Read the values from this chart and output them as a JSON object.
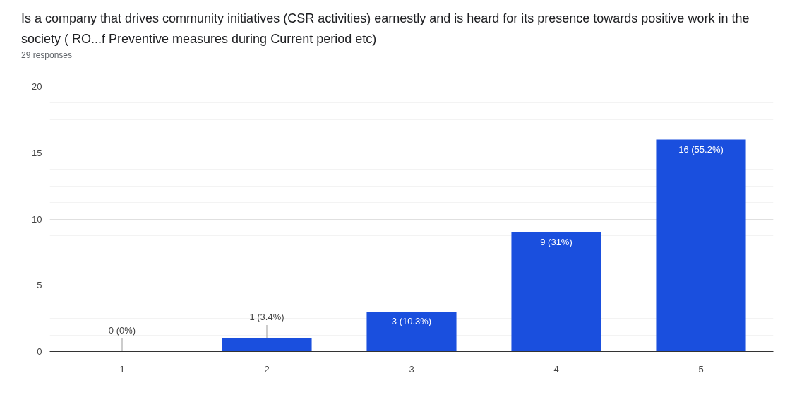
{
  "chart_data": {
    "type": "bar",
    "title": "Is a company that drives community initiatives (CSR activities) earnestly and is heard for its presence towards positive work in the society ( RO...f Preventive measures during Current period  etc)",
    "subtitle": "29 responses",
    "categories": [
      "1",
      "2",
      "3",
      "4",
      "5"
    ],
    "values": [
      0,
      1,
      3,
      9,
      16
    ],
    "value_labels": [
      "0 (0%)",
      "1 (3.4%)",
      "3 (10.3%)",
      "9 (31%)",
      "16 (55.2%)"
    ],
    "color": "#1a4fde",
    "ylim": [
      0,
      20
    ],
    "yticks": [
      0,
      5,
      10,
      15,
      20
    ],
    "grid": "y"
  }
}
